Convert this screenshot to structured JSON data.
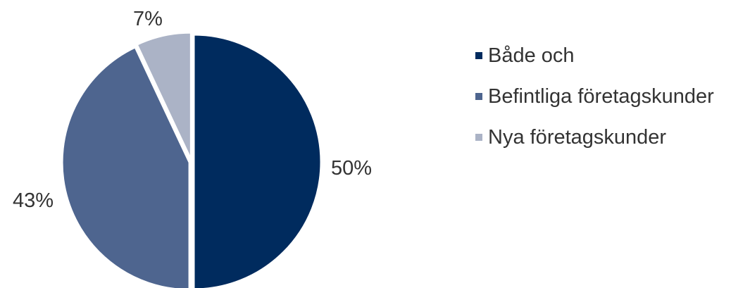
{
  "chart_data": {
    "type": "pie",
    "title": "",
    "slices": [
      {
        "label": "Både och",
        "value": 50,
        "display": "50%",
        "color": "#002b5e"
      },
      {
        "label": "Befintliga företagskunder",
        "value": 43,
        "display": "43%",
        "color": "#4e658f"
      },
      {
        "label": "Nya företagskunder",
        "value": 7,
        "display": "7%",
        "color": "#abb3c6"
      }
    ],
    "legend_position": "right"
  }
}
